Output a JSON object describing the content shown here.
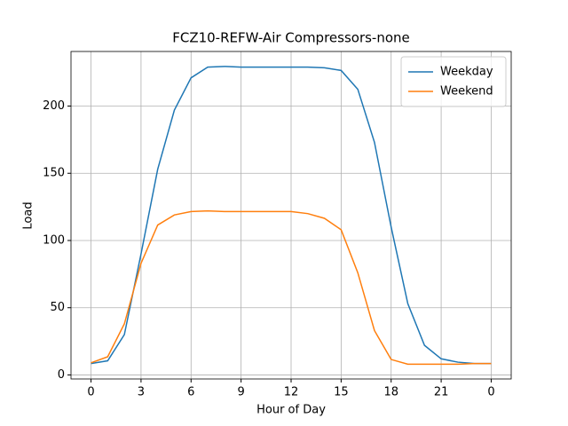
{
  "chart_data": {
    "type": "line",
    "title": "FCZ10-REFW-Air Compressors-none",
    "xlabel": "Hour of Day",
    "ylabel": "Load",
    "x": [
      0,
      1,
      2,
      3,
      4,
      5,
      6,
      7,
      8,
      9,
      10,
      11,
      12,
      13,
      14,
      15,
      16,
      17,
      18,
      19,
      20,
      21,
      22,
      23,
      24
    ],
    "series": [
      {
        "name": "Weekday",
        "color": "#1f77b4",
        "values": [
          8.5,
          10.5,
          30,
          90,
          153,
          197,
          221,
          229,
          229.5,
          229,
          229,
          229,
          229,
          229,
          228.5,
          226.5,
          212.5,
          173,
          110,
          53,
          22,
          12,
          9.5,
          8.5,
          8.5
        ]
      },
      {
        "name": "Weekend",
        "color": "#ff7f0e",
        "values": [
          9,
          13.5,
          38,
          83,
          111.5,
          119,
          121.5,
          122,
          121.5,
          121.5,
          121.5,
          121.5,
          121.5,
          120,
          116.5,
          108,
          76,
          33,
          11.5,
          8,
          8,
          8,
          8,
          8.5,
          8.5
        ]
      }
    ],
    "xlim": [
      -1.2,
      25.2
    ],
    "ylim": [
      -3,
      240.6
    ],
    "xticks": [
      0,
      3,
      6,
      9,
      12,
      15,
      18,
      21,
      {
        "value": 24,
        "label": "0"
      }
    ],
    "yticks": [
      0,
      50,
      100,
      150,
      200
    ],
    "grid": true,
    "legend": "upper right"
  }
}
